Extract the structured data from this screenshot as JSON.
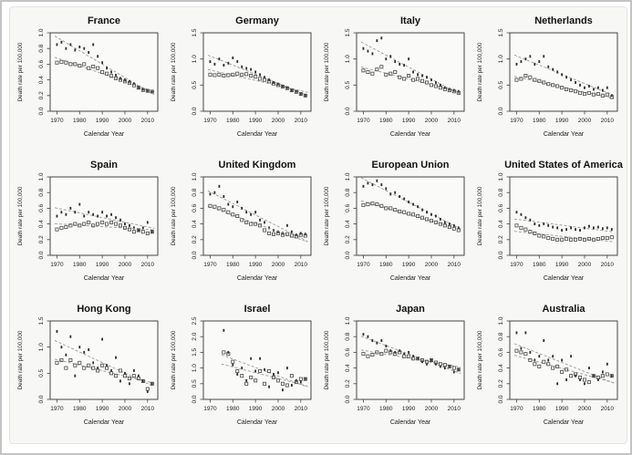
{
  "figure": {
    "ylabel": "Death rate per 100,000",
    "xlabel": "Calendar Year",
    "xticks": [
      1970,
      1980,
      1990,
      2000,
      2010
    ],
    "xlim": [
      1967,
      2014.5
    ],
    "years": [
      1970,
      1972,
      1974,
      1976,
      1978,
      1980,
      1982,
      1984,
      1986,
      1988,
      1990,
      1992,
      1994,
      1996,
      1998,
      2000,
      2002,
      2004,
      2006,
      2008,
      2010,
      2012
    ],
    "colors": {
      "point_filled": "#2f2f2f",
      "point_open": "#4a4a4a",
      "trend": "#9a9a9a",
      "box": "#444444",
      "panel_bg": "#f7f7f5",
      "plot_bg": "#fafaf8",
      "title": "#111111",
      "label": "#222222"
    }
  },
  "chart_data": [
    {
      "type": "scatter",
      "title": "France",
      "ylim": [
        0,
        1.0
      ],
      "yticks": [
        0.0,
        0.2,
        0.4,
        0.6,
        0.8,
        1.0
      ],
      "series": [
        {
          "name": "filled-markers",
          "values": [
            0.85,
            0.88,
            0.8,
            0.85,
            0.78,
            0.82,
            0.8,
            0.75,
            0.85,
            0.7,
            0.62,
            0.55,
            0.5,
            0.46,
            0.42,
            0.4,
            0.38,
            0.35,
            0.3,
            0.28,
            0.26,
            0.25
          ]
        },
        {
          "name": "open-markers",
          "values": [
            0.62,
            0.63,
            0.62,
            0.6,
            0.6,
            0.58,
            0.6,
            0.55,
            0.57,
            0.55,
            0.5,
            0.48,
            0.45,
            0.42,
            0.4,
            0.38,
            0.36,
            0.33,
            0.3,
            0.27,
            0.26,
            0.25
          ]
        }
      ]
    },
    {
      "type": "scatter",
      "title": "Germany",
      "ylim": [
        0,
        1.5
      ],
      "yticks": [
        0.0,
        0.5,
        1.0,
        1.5
      ],
      "series": [
        {
          "name": "filled-markers",
          "values": [
            0.95,
            0.9,
            1.0,
            0.88,
            0.92,
            1.02,
            0.95,
            0.85,
            0.82,
            0.8,
            0.75,
            0.7,
            0.65,
            0.6,
            0.55,
            0.52,
            0.48,
            0.45,
            0.4,
            0.38,
            0.33,
            0.3
          ]
        },
        {
          "name": "open-markers",
          "values": [
            0.7,
            0.69,
            0.7,
            0.68,
            0.69,
            0.7,
            0.72,
            0.7,
            0.71,
            0.68,
            0.66,
            0.62,
            0.6,
            0.57,
            0.53,
            0.5,
            0.47,
            0.44,
            0.4,
            0.37,
            0.33,
            0.3
          ]
        }
      ]
    },
    {
      "type": "scatter",
      "title": "Italy",
      "ylim": [
        0,
        1.5
      ],
      "yticks": [
        0.0,
        0.5,
        1.0,
        1.5
      ],
      "series": [
        {
          "name": "filled-markers",
          "values": [
            1.2,
            1.15,
            1.1,
            1.35,
            1.4,
            1.0,
            1.05,
            0.95,
            0.9,
            0.88,
            1.0,
            0.75,
            0.7,
            0.68,
            0.65,
            0.6,
            0.55,
            0.5,
            0.45,
            0.42,
            0.4,
            0.38
          ]
        },
        {
          "name": "open-markers",
          "values": [
            0.78,
            0.75,
            0.72,
            0.8,
            0.85,
            0.7,
            0.72,
            0.75,
            0.65,
            0.62,
            0.68,
            0.6,
            0.62,
            0.58,
            0.55,
            0.5,
            0.48,
            0.45,
            0.42,
            0.4,
            0.38,
            0.35
          ]
        }
      ]
    },
    {
      "type": "scatter",
      "title": "Netherlands",
      "ylim": [
        0,
        1.5
      ],
      "yticks": [
        0.0,
        0.5,
        1.0,
        1.5
      ],
      "series": [
        {
          "name": "filled-markers",
          "values": [
            0.9,
            0.95,
            1.0,
            1.05,
            0.9,
            0.95,
            1.05,
            0.85,
            0.8,
            0.75,
            0.7,
            0.65,
            0.6,
            0.55,
            0.5,
            0.45,
            0.48,
            0.42,
            0.45,
            0.4,
            0.45,
            0.3
          ]
        },
        {
          "name": "open-markers",
          "values": [
            0.6,
            0.62,
            0.68,
            0.65,
            0.6,
            0.58,
            0.55,
            0.52,
            0.5,
            0.48,
            0.45,
            0.42,
            0.4,
            0.38,
            0.35,
            0.33,
            0.35,
            0.32,
            0.33,
            0.3,
            0.32,
            0.27
          ]
        }
      ]
    },
    {
      "type": "scatter",
      "title": "Spain",
      "ylim": [
        0,
        1.0
      ],
      "yticks": [
        0.0,
        0.2,
        0.4,
        0.6,
        0.8,
        1.0
      ],
      "series": [
        {
          "name": "filled-markers",
          "values": [
            0.5,
            0.55,
            0.52,
            0.6,
            0.55,
            0.65,
            0.5,
            0.55,
            0.52,
            0.5,
            0.55,
            0.5,
            0.52,
            0.48,
            0.45,
            0.4,
            0.38,
            0.35,
            0.32,
            0.35,
            0.42,
            0.3
          ]
        },
        {
          "name": "open-markers",
          "values": [
            0.33,
            0.35,
            0.36,
            0.38,
            0.4,
            0.38,
            0.4,
            0.42,
            0.38,
            0.4,
            0.42,
            0.4,
            0.42,
            0.4,
            0.38,
            0.35,
            0.33,
            0.3,
            0.32,
            0.3,
            0.28,
            0.3
          ]
        }
      ]
    },
    {
      "type": "scatter",
      "title": "United Kingdom",
      "ylim": [
        0,
        1.0
      ],
      "yticks": [
        0.0,
        0.2,
        0.4,
        0.6,
        0.8,
        1.0
      ],
      "series": [
        {
          "name": "filled-markers",
          "values": [
            0.78,
            0.8,
            0.88,
            0.75,
            0.65,
            0.62,
            0.68,
            0.6,
            0.55,
            0.52,
            0.55,
            0.45,
            0.42,
            0.35,
            0.32,
            0.3,
            0.28,
            0.38,
            0.3,
            0.26,
            0.28,
            0.27
          ]
        },
        {
          "name": "open-markers",
          "values": [
            0.63,
            0.62,
            0.6,
            0.58,
            0.55,
            0.52,
            0.5,
            0.45,
            0.42,
            0.4,
            0.4,
            0.38,
            0.32,
            0.28,
            0.27,
            0.28,
            0.26,
            0.27,
            0.25,
            0.24,
            0.26,
            0.25
          ]
        }
      ]
    },
    {
      "type": "scatter",
      "title": "European Union",
      "ylim": [
        0,
        1.0
      ],
      "yticks": [
        0.0,
        0.2,
        0.4,
        0.6,
        0.8,
        1.0
      ],
      "series": [
        {
          "name": "filled-markers",
          "values": [
            0.88,
            0.92,
            0.9,
            0.95,
            0.9,
            0.85,
            0.78,
            0.8,
            0.75,
            0.72,
            0.68,
            0.65,
            0.62,
            0.58,
            0.55,
            0.52,
            0.5,
            0.46,
            0.42,
            0.4,
            0.38,
            0.35
          ]
        },
        {
          "name": "open-markers",
          "values": [
            0.64,
            0.65,
            0.66,
            0.65,
            0.63,
            0.6,
            0.6,
            0.58,
            0.56,
            0.55,
            0.53,
            0.52,
            0.5,
            0.48,
            0.46,
            0.44,
            0.42,
            0.4,
            0.38,
            0.36,
            0.34,
            0.32
          ]
        }
      ]
    },
    {
      "type": "scatter",
      "title": "United States of America",
      "ylim": [
        0,
        1.0
      ],
      "yticks": [
        0.0,
        0.2,
        0.4,
        0.6,
        0.8,
        1.0
      ],
      "series": [
        {
          "name": "filled-markers",
          "values": [
            0.55,
            0.52,
            0.48,
            0.45,
            0.4,
            0.38,
            0.4,
            0.38,
            0.36,
            0.35,
            0.32,
            0.33,
            0.35,
            0.33,
            0.32,
            0.35,
            0.37,
            0.35,
            0.36,
            0.34,
            0.35,
            0.33
          ]
        },
        {
          "name": "open-markers",
          "values": [
            0.38,
            0.35,
            0.33,
            0.3,
            0.28,
            0.25,
            0.24,
            0.22,
            0.21,
            0.2,
            0.2,
            0.21,
            0.2,
            0.2,
            0.21,
            0.2,
            0.21,
            0.2,
            0.21,
            0.22,
            0.22,
            0.23
          ]
        }
      ]
    },
    {
      "type": "scatter",
      "title": "Hong Kong",
      "ylim": [
        0,
        1.5
      ],
      "yticks": [
        0.0,
        0.5,
        1.0,
        1.5
      ],
      "series": [
        {
          "name": "filled-markers",
          "values": [
            1.3,
            1.0,
            0.85,
            1.2,
            0.45,
            1.0,
            0.9,
            0.95,
            0.7,
            0.6,
            1.15,
            0.65,
            0.55,
            0.8,
            0.35,
            0.5,
            0.3,
            0.55,
            0.45,
            0.35,
            0.15,
            0.3
          ]
        },
        {
          "name": "open-markers",
          "values": [
            0.7,
            0.75,
            0.6,
            0.75,
            0.65,
            0.7,
            0.6,
            0.65,
            0.6,
            0.55,
            0.65,
            0.6,
            0.5,
            0.45,
            0.55,
            0.45,
            0.4,
            0.45,
            0.4,
            0.35,
            0.2,
            0.3
          ]
        }
      ]
    },
    {
      "type": "scatter",
      "title": "Israel",
      "ylim": [
        0,
        2.5
      ],
      "yticks": [
        0.0,
        0.5,
        1.0,
        1.5,
        2.0,
        2.5
      ],
      "series": [
        {
          "name": "filled-markers",
          "values": [
            null,
            null,
            null,
            2.2,
            1.5,
            1.1,
            0.8,
            1.0,
            0.6,
            1.3,
            0.9,
            1.3,
            0.95,
            0.4,
            0.8,
            0.85,
            0.3,
            1.0,
            0.45,
            0.6,
            0.55,
            0.65
          ]
        },
        {
          "name": "open-markers",
          "values": [
            null,
            null,
            null,
            1.5,
            1.45,
            1.2,
            0.9,
            0.75,
            0.5,
            0.7,
            0.6,
            0.9,
            0.5,
            0.9,
            0.7,
            0.6,
            0.5,
            0.45,
            0.75,
            0.55,
            0.65,
            0.65
          ]
        }
      ]
    },
    {
      "type": "scatter",
      "title": "Japan",
      "ylim": [
        0,
        1.0
      ],
      "yticks": [
        0.0,
        0.2,
        0.4,
        0.6,
        0.8,
        1.0
      ],
      "series": [
        {
          "name": "filled-markers",
          "values": [
            0.83,
            0.8,
            0.75,
            0.72,
            0.75,
            0.68,
            0.62,
            0.6,
            0.62,
            0.58,
            0.6,
            0.55,
            0.52,
            0.48,
            0.45,
            0.5,
            0.45,
            0.42,
            0.4,
            0.42,
            0.35,
            0.38
          ]
        },
        {
          "name": "open-markers",
          "values": [
            0.58,
            0.55,
            0.57,
            0.6,
            0.58,
            0.62,
            0.6,
            0.58,
            0.6,
            0.55,
            0.55,
            0.52,
            0.52,
            0.5,
            0.48,
            0.5,
            0.47,
            0.45,
            0.44,
            0.42,
            0.4,
            0.38
          ]
        }
      ]
    },
    {
      "type": "scatter",
      "title": "Australia",
      "ylim": [
        0,
        1.0
      ],
      "yticks": [
        0.0,
        0.2,
        0.4,
        0.6,
        0.8,
        1.0
      ],
      "series": [
        {
          "name": "filled-markers",
          "values": [
            0.85,
            0.65,
            0.85,
            0.6,
            0.5,
            0.55,
            0.75,
            0.5,
            0.55,
            0.2,
            0.5,
            0.25,
            0.55,
            0.3,
            0.25,
            0.2,
            0.4,
            0.3,
            0.25,
            0.35,
            0.45,
            0.3
          ]
        },
        {
          "name": "open-markers",
          "values": [
            0.62,
            0.6,
            0.58,
            0.5,
            0.45,
            0.42,
            0.48,
            0.45,
            0.4,
            0.42,
            0.35,
            0.38,
            0.3,
            0.32,
            0.28,
            0.25,
            0.22,
            0.3,
            0.28,
            0.3,
            0.32,
            0.3
          ]
        }
      ]
    }
  ]
}
